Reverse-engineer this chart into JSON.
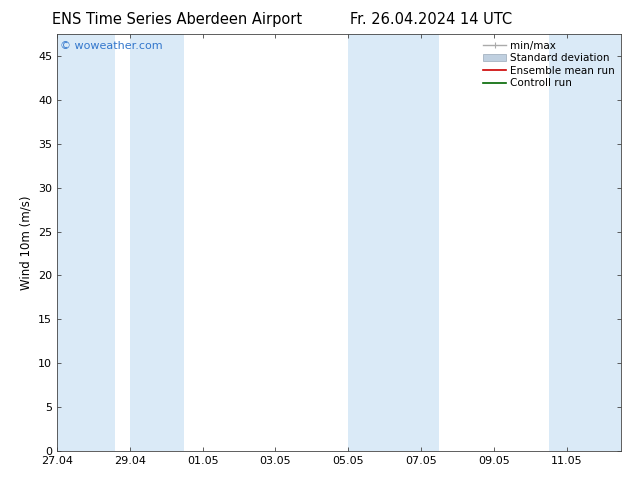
{
  "title_left": "ENS Time Series Aberdeen Airport",
  "title_right": "Fr. 26.04.2024 14 UTC",
  "ylabel": "Wind 10m (m/s)",
  "watermark": "© woweather.com",
  "xtick_labels": [
    "27.04",
    "29.04",
    "01.05",
    "03.05",
    "05.05",
    "07.05",
    "09.05",
    "11.05"
  ],
  "xtick_positions": [
    0,
    2,
    4,
    6,
    8,
    10,
    12,
    14
  ],
  "xlim": [
    0,
    15.5
  ],
  "ylim": [
    0,
    47.5
  ],
  "ytick_positions": [
    0,
    5,
    10,
    15,
    20,
    25,
    30,
    35,
    40,
    45
  ],
  "ytick_labels": [
    "0",
    "5",
    "10",
    "15",
    "20",
    "25",
    "30",
    "35",
    "40",
    "45"
  ],
  "shaded_bands": [
    [
      0,
      1.6
    ],
    [
      2.0,
      3.5
    ],
    [
      8.0,
      10.5
    ],
    [
      13.5,
      15.5
    ]
  ],
  "band_color": "#daeaf7",
  "bg_color": "#ffffff",
  "legend_items": [
    {
      "label": "min/max",
      "color": "#aaaaaa",
      "style": "errorbar"
    },
    {
      "label": "Standard deviation",
      "color": "#c0d0e0",
      "style": "patch"
    },
    {
      "label": "Ensemble mean run",
      "color": "#cc0000",
      "style": "line"
    },
    {
      "label": "Controll run",
      "color": "#006600",
      "style": "line"
    }
  ],
  "title_fontsize": 10.5,
  "legend_fontsize": 7.5,
  "axis_fontsize": 8.5,
  "tick_fontsize": 8,
  "watermark_color": "#3377cc",
  "watermark_fontsize": 8,
  "spine_color": "#444444",
  "tick_color": "#444444"
}
